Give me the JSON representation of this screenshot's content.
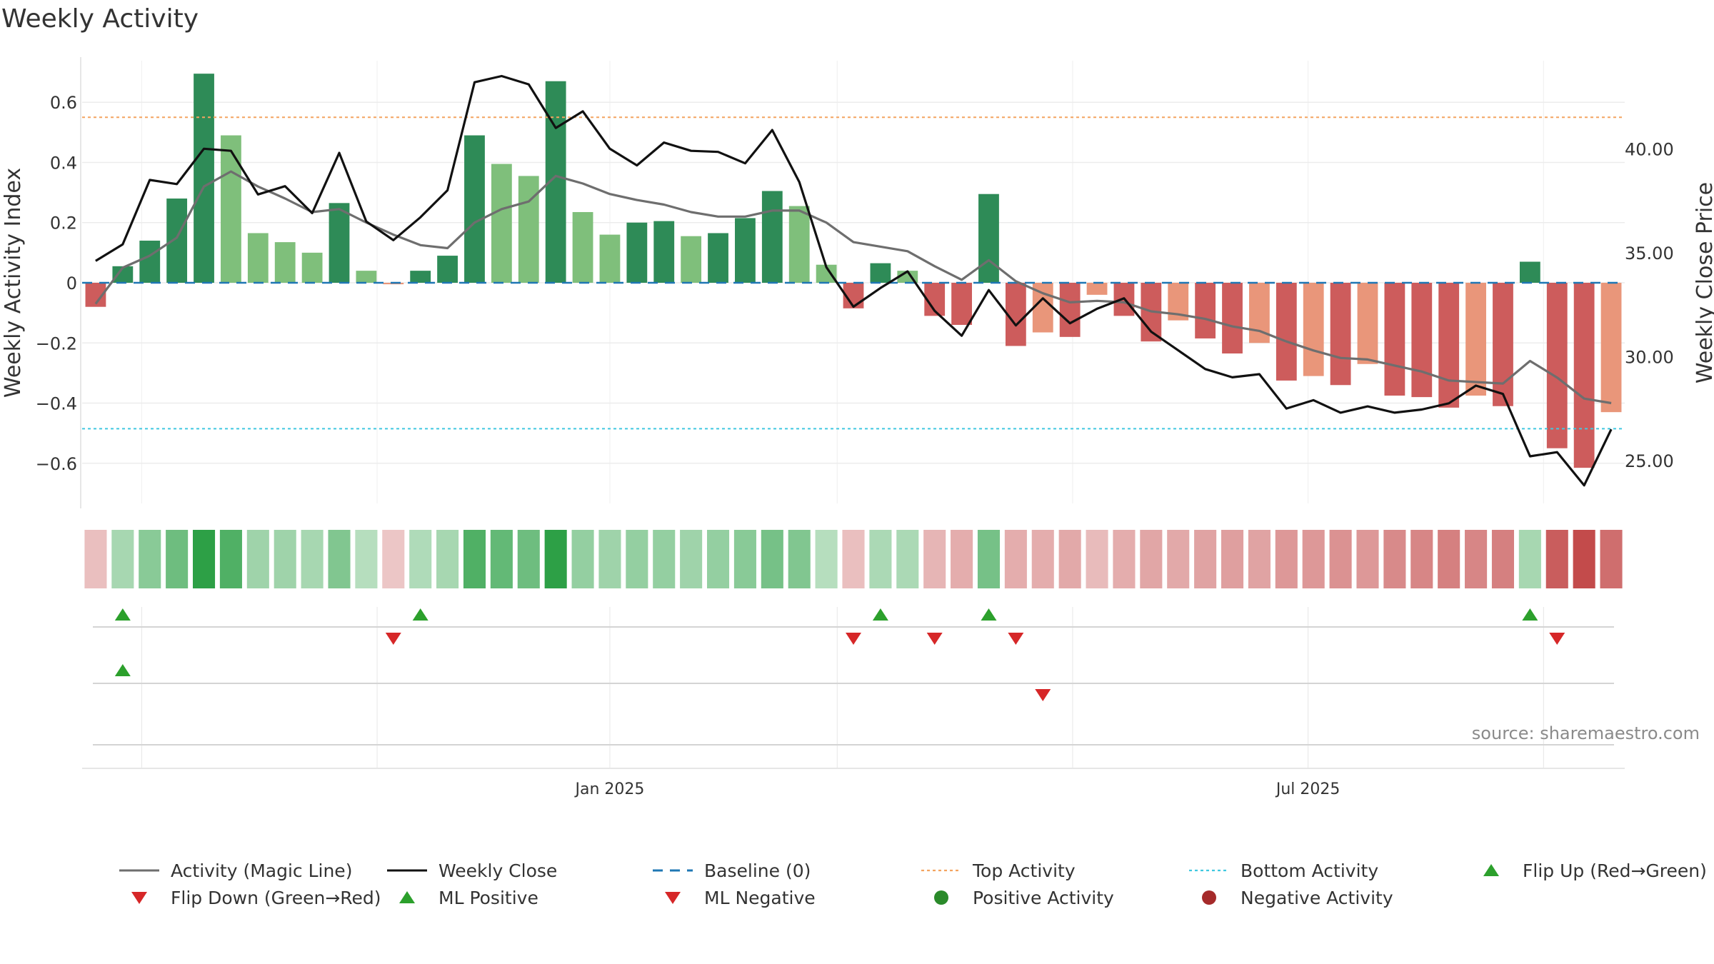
{
  "title": "Weekly Activity",
  "source": "source: sharemaestro.com",
  "colors": {
    "strongGreen": "#2e8b57",
    "lightGreen": "#7fbf7b",
    "strongRed": "#cd5c5c",
    "lightRed": "#e9967a",
    "magic": "#6e6e6e",
    "close": "#111111",
    "baseline": "#1f77b4",
    "top": "#f4a460",
    "bottom": "#40c8e0",
    "flipUp": "#2ca02c",
    "flipDown": "#d62728",
    "positive": "#2a8a2a",
    "negative": "#a52a2a"
  },
  "chart_data": {
    "type": "bar",
    "title": "Weekly Activity",
    "ylabel": "Weekly Activity Index",
    "y2label": "Weekly Close Price",
    "ylim": [
      -0.75,
      0.75
    ],
    "y2lim": [
      23.0,
      45.0
    ],
    "yticks": [
      {
        "v": 0.6,
        "label": "0.6"
      },
      {
        "v": 0.4,
        "label": "0.4"
      },
      {
        "v": 0.2,
        "label": "0.2"
      },
      {
        "v": 0,
        "label": "0"
      },
      {
        "v": -0.2,
        "label": "−0.2"
      },
      {
        "v": -0.4,
        "label": "−0.4"
      },
      {
        "v": -0.6,
        "label": "−0.6"
      }
    ],
    "y2ticks": [
      {
        "v": 40,
        "label": "40.00"
      },
      {
        "v": 35,
        "label": "35.00"
      },
      {
        "v": 30,
        "label": "30.00"
      },
      {
        "v": 25,
        "label": "25.00"
      }
    ],
    "xticks": [
      {
        "label": "Jan 2025",
        "week": 19.5
      },
      {
        "label": "Jul 2025",
        "week": 45.3
      }
    ],
    "minor_vlines": [
      2.2,
      10.9,
      19.5,
      27.9,
      36.6,
      45.3,
      54.0
    ],
    "grid": true,
    "baseline": 0,
    "top_activity": 0.55,
    "bottom_activity": -0.485,
    "weeks": 57,
    "activity": [
      -0.08,
      0.055,
      0.14,
      0.28,
      0.695,
      0.49,
      0.165,
      0.135,
      0.1,
      0.265,
      0.04,
      -0.005,
      0.04,
      0.09,
      0.49,
      0.395,
      0.355,
      0.67,
      0.235,
      0.16,
      0.2,
      0.205,
      0.155,
      0.165,
      0.215,
      0.305,
      0.255,
      0.06,
      -0.085,
      0.065,
      0.04,
      -0.11,
      -0.14,
      0.295,
      -0.21,
      -0.165,
      -0.18,
      -0.04,
      -0.11,
      -0.195,
      -0.125,
      -0.185,
      -0.235,
      -0.2,
      -0.325,
      -0.31,
      -0.34,
      -0.27,
      -0.375,
      -0.38,
      -0.415,
      -0.375,
      -0.41,
      0.07,
      -0.55,
      -0.615,
      -0.43
    ],
    "strength": [
      2,
      2,
      2,
      2,
      2,
      1,
      1,
      1,
      1,
      2,
      1,
      1,
      2,
      2,
      2,
      1,
      1,
      2,
      1,
      1,
      2,
      2,
      1,
      2,
      2,
      2,
      1,
      1,
      2,
      2,
      1,
      2,
      2,
      2,
      2,
      1,
      2,
      1,
      2,
      2,
      1,
      2,
      2,
      1,
      2,
      1,
      2,
      1,
      2,
      2,
      2,
      1,
      2,
      2,
      2,
      2,
      1
    ],
    "heat_intensity": [
      0.2,
      0.3,
      0.45,
      0.6,
      0.95,
      0.75,
      0.35,
      0.35,
      0.3,
      0.5,
      0.22,
      0.15,
      0.25,
      0.3,
      0.75,
      0.65,
      0.6,
      0.95,
      0.4,
      0.35,
      0.4,
      0.4,
      0.35,
      0.4,
      0.45,
      0.55,
      0.5,
      0.22,
      0.2,
      0.28,
      0.28,
      0.25,
      0.3,
      0.55,
      0.3,
      0.3,
      0.32,
      0.22,
      0.3,
      0.35,
      0.32,
      0.36,
      0.38,
      0.36,
      0.42,
      0.42,
      0.45,
      0.42,
      0.5,
      0.52,
      0.55,
      0.52,
      0.55,
      0.3,
      0.75,
      0.85,
      0.65
    ],
    "magic_line": [
      -0.07,
      0.05,
      0.09,
      0.15,
      0.32,
      0.37,
      0.32,
      0.28,
      0.235,
      0.245,
      0.2,
      0.16,
      0.125,
      0.115,
      0.2,
      0.245,
      0.27,
      0.355,
      0.33,
      0.295,
      0.275,
      0.26,
      0.235,
      0.22,
      0.22,
      0.24,
      0.24,
      0.2,
      0.135,
      0.12,
      0.105,
      0.055,
      0.01,
      0.075,
      0.005,
      -0.035,
      -0.065,
      -0.06,
      -0.065,
      -0.095,
      -0.105,
      -0.12,
      -0.145,
      -0.16,
      -0.195,
      -0.225,
      -0.25,
      -0.255,
      -0.275,
      -0.295,
      -0.325,
      -0.33,
      -0.335,
      -0.26,
      -0.315,
      -0.385,
      -0.4
    ],
    "close": [
      34.6,
      35.4,
      38.5,
      38.3,
      40.0,
      39.9,
      37.8,
      38.2,
      36.9,
      39.8,
      36.5,
      35.6,
      36.7,
      38.0,
      43.2,
      43.5,
      43.1,
      41.0,
      41.8,
      40.0,
      39.2,
      40.3,
      39.9,
      39.85,
      39.3,
      40.9,
      38.4,
      34.3,
      32.4,
      33.3,
      34.1,
      32.2,
      31.0,
      33.2,
      31.5,
      32.8,
      31.6,
      32.3,
      32.8,
      31.2,
      30.3,
      29.4,
      29.0,
      29.15,
      27.5,
      27.9,
      27.3,
      27.6,
      27.3,
      27.45,
      27.75,
      28.6,
      28.2,
      25.2,
      25.4,
      23.8,
      26.5
    ],
    "flip_up": [
      1,
      12,
      29,
      33,
      53
    ],
    "flip_down": [
      11,
      28,
      31,
      34,
      54
    ],
    "ml_positive": [
      1
    ],
    "ml_negative": [
      35
    ],
    "legend": [
      {
        "label": "Activity (Magic Line)",
        "symbol": "line",
        "color": "#6e6e6e"
      },
      {
        "label": "Weekly Close",
        "symbol": "line",
        "color": "#111111"
      },
      {
        "label": "Baseline (0)",
        "symbol": "dash",
        "color": "#1f77b4"
      },
      {
        "label": "Top Activity",
        "symbol": "dot-line",
        "color": "#f4a460"
      },
      {
        "label": "Bottom Activity",
        "symbol": "dot-line",
        "color": "#40c8e0"
      },
      {
        "label": "Flip Up (Red→Green)",
        "symbol": "tri-up",
        "color": "#2ca02c"
      },
      {
        "label": "Flip Down (Green→Red)",
        "symbol": "tri-down",
        "color": "#d62728"
      },
      {
        "label": "ML Positive",
        "symbol": "tri-up",
        "color": "#2ca02c"
      },
      {
        "label": "ML Negative",
        "symbol": "tri-down",
        "color": "#d62728"
      },
      {
        "label": "Positive Activity",
        "symbol": "circle",
        "color": "#2a8a2a"
      },
      {
        "label": "Negative Activity",
        "symbol": "circle",
        "color": "#a52a2a"
      }
    ]
  }
}
